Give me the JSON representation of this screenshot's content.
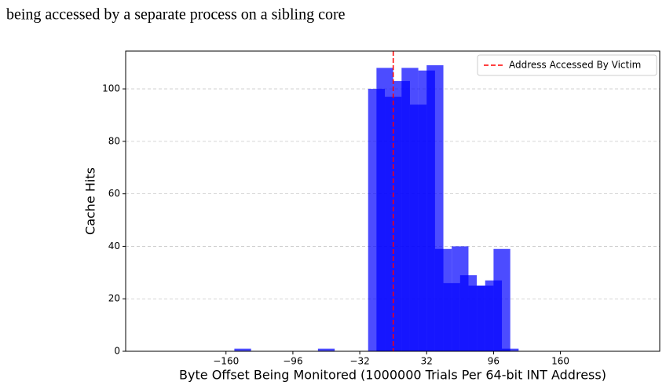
{
  "caption": "being accessed by a separate process on a sibling core",
  "chart_data": {
    "type": "histogram",
    "xlabel": "Byte Offset Being Monitored (1000000 Trials Per 64-bit INT Address)",
    "ylabel": "Cache Hits",
    "xlim": [
      -256,
      255
    ],
    "ylim": [
      0,
      114.4
    ],
    "xticks": [
      {
        "value": -160,
        "label": "−160"
      },
      {
        "value": -96,
        "label": "−96"
      },
      {
        "value": -32,
        "label": "−32"
      },
      32,
      96,
      160
    ],
    "yticks": [
      0,
      20,
      40,
      60,
      80,
      100
    ],
    "grid": "y",
    "alpha": 0.7,
    "series": [
      {
        "color": "#0000ff",
        "bins": [
          -152,
          -136,
          -120,
          -104,
          -88,
          -72,
          -56,
          -40,
          -24,
          -8,
          8,
          24,
          40,
          56,
          72,
          88,
          104,
          120
        ],
        "counts": [
          1,
          0,
          0,
          0,
          0,
          1,
          0,
          0,
          100,
          97,
          108,
          107,
          39,
          40,
          25,
          27,
          1
        ]
      },
      {
        "color": "#0000ff",
        "bins": [
          -16,
          0,
          16,
          32,
          48,
          64,
          80,
          96,
          112
        ],
        "counts": [
          108,
          103,
          94,
          109,
          26,
          29,
          25,
          39
        ]
      }
    ],
    "vline": {
      "x": 0,
      "color": "#ff0000",
      "label": "Address Accessed By Victim"
    },
    "legend": "upper right"
  }
}
